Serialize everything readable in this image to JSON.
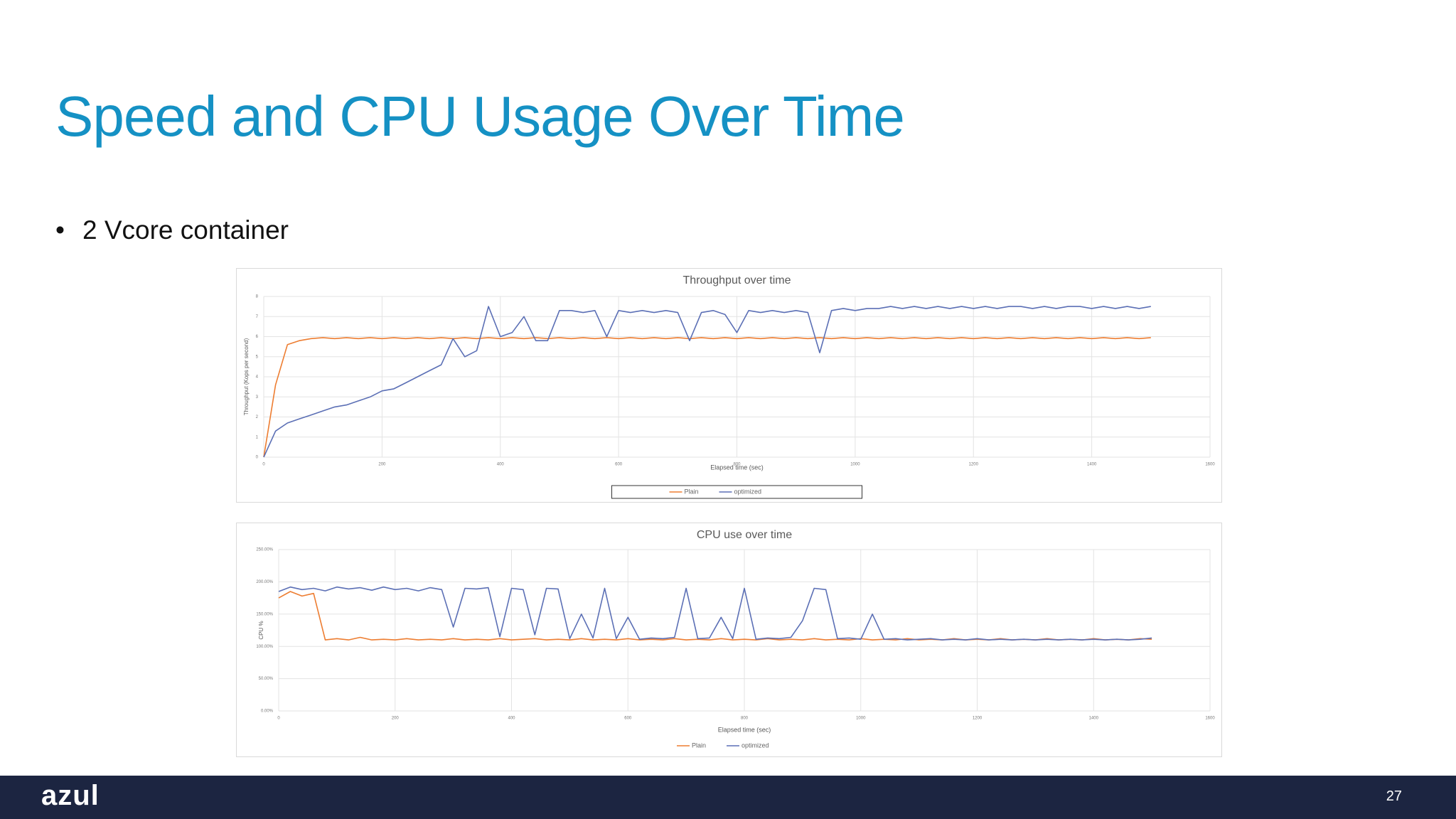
{
  "slide": {
    "title": "Speed and CPU Usage Over Time",
    "bullet": "2 Vcore container",
    "logo": "azul",
    "page_number": "27"
  },
  "chart_data": [
    {
      "type": "line",
      "title": "Throughput over time",
      "xlabel": "Elapsed time (sec)",
      "ylabel": "Throughput (Kops per second)",
      "x": [
        0,
        20,
        40,
        60,
        80,
        100,
        120,
        140,
        160,
        180,
        200,
        220,
        240,
        260,
        280,
        300,
        320,
        340,
        360,
        380,
        400,
        420,
        440,
        460,
        480,
        500,
        520,
        540,
        560,
        580,
        600,
        620,
        640,
        660,
        680,
        700,
        720,
        740,
        760,
        780,
        800,
        820,
        840,
        860,
        880,
        900,
        920,
        940,
        960,
        980,
        1000,
        1020,
        1040,
        1060,
        1080,
        1100,
        1120,
        1140,
        1160,
        1180,
        1200,
        1220,
        1240,
        1260,
        1280,
        1300,
        1320,
        1340,
        1360,
        1380,
        1400,
        1420,
        1440,
        1460,
        1480,
        1500
      ],
      "series": [
        {
          "name": "Plain",
          "color": "#ed7d31",
          "values": [
            0,
            3.6,
            5.6,
            5.8,
            5.9,
            5.95,
            5.9,
            5.95,
            5.9,
            5.95,
            5.9,
            5.95,
            5.9,
            5.95,
            5.9,
            5.95,
            5.9,
            5.95,
            5.9,
            5.95,
            5.9,
            5.95,
            5.9,
            5.95,
            5.9,
            5.95,
            5.9,
            5.95,
            5.9,
            5.95,
            5.9,
            5.95,
            5.9,
            5.95,
            5.9,
            5.95,
            5.9,
            5.95,
            5.9,
            5.95,
            5.9,
            5.95,
            5.9,
            5.95,
            5.9,
            5.95,
            5.9,
            5.95,
            5.9,
            5.95,
            5.9,
            5.95,
            5.9,
            5.95,
            5.9,
            5.95,
            5.9,
            5.95,
            5.9,
            5.95,
            5.9,
            5.95,
            5.9,
            5.95,
            5.9,
            5.95,
            5.9,
            5.95,
            5.9,
            5.95,
            5.9,
            5.95,
            5.9,
            5.95,
            5.9,
            5.95
          ]
        },
        {
          "name": "optimized",
          "color": "#5b6fb5",
          "values": [
            0,
            1.3,
            1.7,
            1.9,
            2.1,
            2.3,
            2.5,
            2.6,
            2.8,
            3.0,
            3.3,
            3.4,
            3.7,
            4.0,
            4.3,
            4.6,
            5.9,
            5.0,
            5.3,
            7.5,
            6.0,
            6.2,
            7.0,
            5.8,
            5.8,
            7.3,
            7.3,
            7.2,
            7.3,
            6.0,
            7.3,
            7.2,
            7.3,
            7.2,
            7.3,
            7.2,
            5.8,
            7.2,
            7.3,
            7.1,
            6.2,
            7.3,
            7.2,
            7.3,
            7.2,
            7.3,
            7.2,
            5.2,
            7.3,
            7.4,
            7.3,
            7.4,
            7.4,
            7.5,
            7.4,
            7.5,
            7.4,
            7.5,
            7.4,
            7.5,
            7.4,
            7.5,
            7.4,
            7.5,
            7.5,
            7.4,
            7.5,
            7.4,
            7.5,
            7.5,
            7.4,
            7.5,
            7.4,
            7.5,
            7.4,
            7.5
          ]
        }
      ],
      "xlim": [
        0,
        1600
      ],
      "xticks": [
        0,
        200,
        400,
        600,
        800,
        1000,
        1200,
        1400,
        1600
      ],
      "ylim": [
        0,
        8
      ],
      "yticks": [
        0,
        1,
        2,
        3,
        4,
        5,
        6,
        7,
        8
      ],
      "grid": true,
      "legend": "bottom"
    },
    {
      "type": "line",
      "title": "CPU use over time",
      "xlabel": "Elapsed time (sec)",
      "ylabel": "CPU %",
      "x": [
        0,
        20,
        40,
        60,
        80,
        100,
        120,
        140,
        160,
        180,
        200,
        220,
        240,
        260,
        280,
        300,
        320,
        340,
        360,
        380,
        400,
        420,
        440,
        460,
        480,
        500,
        520,
        540,
        560,
        580,
        600,
        620,
        640,
        660,
        680,
        700,
        720,
        740,
        760,
        780,
        800,
        820,
        840,
        860,
        880,
        900,
        920,
        940,
        960,
        980,
        1000,
        1020,
        1040,
        1060,
        1080,
        1100,
        1120,
        1140,
        1160,
        1180,
        1200,
        1220,
        1240,
        1260,
        1280,
        1300,
        1320,
        1340,
        1360,
        1380,
        1400,
        1420,
        1440,
        1460,
        1480,
        1500
      ],
      "series": [
        {
          "name": "Plain",
          "color": "#ed7d31",
          "values": [
            175,
            185,
            178,
            182,
            110,
            112,
            110,
            114,
            110,
            111,
            110,
            112,
            110,
            111,
            110,
            112,
            110,
            111,
            110,
            112,
            110,
            111,
            112,
            110,
            111,
            110,
            112,
            110,
            111,
            110,
            112,
            110,
            111,
            110,
            112,
            110,
            111,
            110,
            112,
            110,
            111,
            110,
            112,
            110,
            111,
            110,
            112,
            110,
            111,
            110,
            112,
            110,
            111,
            110,
            112,
            110,
            111,
            110,
            112,
            110,
            111,
            110,
            112,
            110,
            111,
            110,
            112,
            110,
            111,
            110,
            112,
            110,
            111,
            110,
            112,
            111
          ]
        },
        {
          "name": "optimized",
          "color": "#5b6fb5",
          "values": [
            185,
            192,
            188,
            190,
            186,
            192,
            189,
            191,
            187,
            192,
            188,
            190,
            186,
            191,
            188,
            130,
            190,
            189,
            191,
            115,
            190,
            188,
            118,
            190,
            189,
            112,
            150,
            113,
            190,
            112,
            145,
            111,
            113,
            112,
            114,
            190,
            112,
            113,
            145,
            112,
            190,
            111,
            113,
            112,
            114,
            140,
            190,
            188,
            112,
            113,
            111,
            150,
            111,
            112,
            110,
            111,
            112,
            110,
            111,
            110,
            112,
            110,
            111,
            110,
            111,
            110,
            111,
            110,
            111,
            110,
            111,
            110,
            111,
            110,
            111,
            113
          ]
        }
      ],
      "xlim": [
        0,
        1600
      ],
      "xticks": [
        0,
        200,
        400,
        600,
        800,
        1000,
        1200,
        1400,
        1600
      ],
      "ylim": [
        0,
        250
      ],
      "yticks": [
        {
          "value": 0,
          "label": "0.00%"
        },
        {
          "value": 50,
          "label": "50.00%"
        },
        {
          "value": 100,
          "label": "100.00%"
        },
        {
          "value": 150,
          "label": "150.00%"
        },
        {
          "value": 200,
          "label": "200.00%"
        },
        {
          "value": 250,
          "label": "250.00%"
        }
      ],
      "grid": true,
      "legend": "bottom"
    }
  ]
}
